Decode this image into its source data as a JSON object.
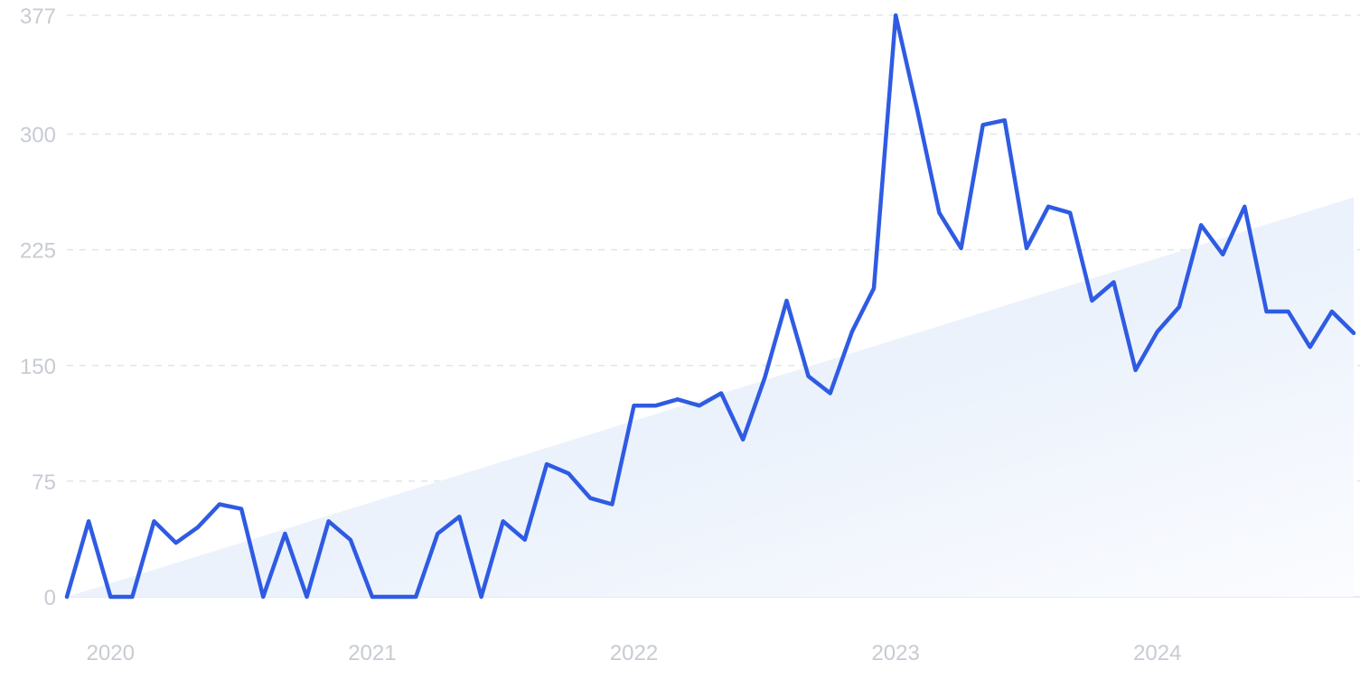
{
  "chart_data": {
    "type": "line",
    "title": "",
    "xlabel": "",
    "ylabel": "",
    "x_tick_labels": [
      "2020",
      "2021",
      "2022",
      "2023",
      "2024"
    ],
    "y_ticks": [
      0,
      75,
      150,
      225,
      300,
      377
    ],
    "ylim": [
      0,
      377
    ],
    "grid": true,
    "legend": "none",
    "series": [
      {
        "values": [
          0,
          49,
          0,
          0,
          49,
          35,
          45,
          60,
          57,
          0,
          41,
          0,
          49,
          37,
          0,
          0,
          0,
          41,
          52,
          0,
          49,
          37,
          86,
          80,
          64,
          60,
          124,
          124,
          128,
          124,
          132,
          102,
          142,
          192,
          143,
          132,
          172,
          200,
          377,
          315,
          249,
          226,
          306,
          309,
          226,
          253,
          249,
          192,
          204,
          147,
          172,
          188,
          241,
          222,
          253,
          185,
          185,
          162,
          185,
          171
        ],
        "color": "#2f5be3"
      },
      {
        "type": "area",
        "values": [
          0,
          259
        ],
        "color": "#dbe8fa"
      }
    ]
  }
}
